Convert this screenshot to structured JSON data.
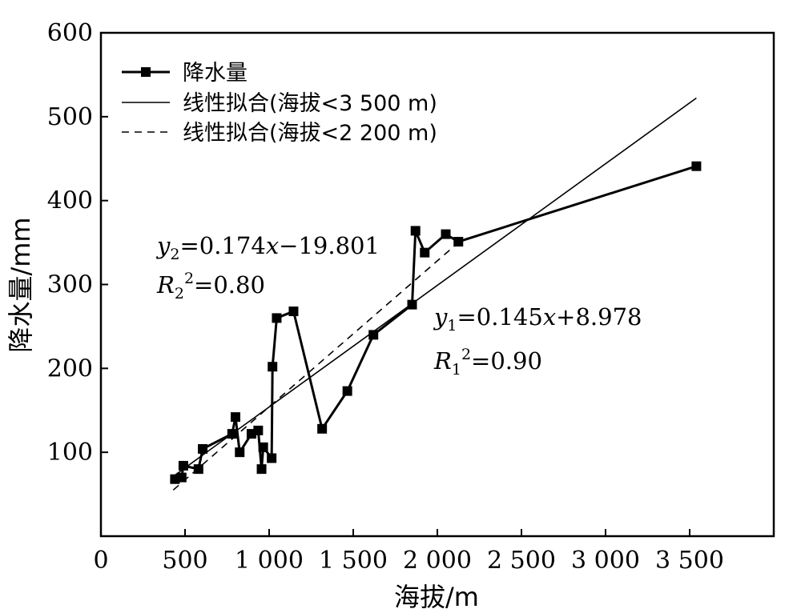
{
  "chart_data": {
    "type": "scatter",
    "title": "",
    "xlabel": "海拔/m",
    "ylabel": "降水量/mm",
    "xlim": [
      0,
      4000
    ],
    "ylim": [
      0,
      600
    ],
    "x_tick_values": [
      0,
      500,
      1000,
      1500,
      2000,
      2500,
      3000,
      3500
    ],
    "x_tick_labels": [
      "0",
      "500",
      "1 000",
      "1 500",
      "2 000",
      "2 500",
      "3 000",
      "3 500"
    ],
    "y_tick_values": [
      100,
      200,
      300,
      400,
      500,
      600
    ],
    "y_tick_labels": [
      "100",
      "200",
      "300",
      "400",
      "500",
      "600"
    ],
    "legend_position": "top-left",
    "series": [
      {
        "name": "降水量",
        "style": "line-square-markers",
        "points": [
          [
            440,
            68
          ],
          [
            480,
            70
          ],
          [
            490,
            84
          ],
          [
            580,
            80
          ],
          [
            605,
            104
          ],
          [
            780,
            122
          ],
          [
            800,
            142
          ],
          [
            825,
            100
          ],
          [
            895,
            122
          ],
          [
            935,
            126
          ],
          [
            955,
            80
          ],
          [
            965,
            106
          ],
          [
            1015,
            93
          ],
          [
            1020,
            202
          ],
          [
            1045,
            260
          ],
          [
            1145,
            268
          ],
          [
            1315,
            128
          ],
          [
            1465,
            173
          ],
          [
            1620,
            240
          ],
          [
            1850,
            276
          ],
          [
            1870,
            364
          ],
          [
            1925,
            338
          ],
          [
            2050,
            360
          ],
          [
            2125,
            351
          ],
          [
            3540,
            441
          ]
        ]
      },
      {
        "name": "线性拟合(海拔<3 500 m)",
        "style": "solid-line",
        "slope": 0.145,
        "intercept": 8.978,
        "x_range": [
          430,
          3540
        ]
      },
      {
        "name": "线性拟合(海拔<2 200 m)",
        "style": "dashed-line",
        "slope": 0.174,
        "intercept": -19.801,
        "x_range": [
          430,
          2125
        ]
      }
    ],
    "annotations": [
      {
        "id": "eq2",
        "line1": {
          "var": "y",
          "sub": "2",
          "rest": "=0.174",
          "var2": "x",
          "rest2": "−19.801"
        },
        "line2": {
          "var": "R",
          "sub": "2",
          "sup": "2",
          "rest": "=0.80"
        }
      },
      {
        "id": "eq1",
        "line1": {
          "var": "y",
          "sub": "1",
          "rest": "=0.145",
          "var2": "x",
          "rest2": "+8.978"
        },
        "line2": {
          "var": "R",
          "sub": "1",
          "sup": "2",
          "rest": "=0.90"
        }
      }
    ]
  }
}
